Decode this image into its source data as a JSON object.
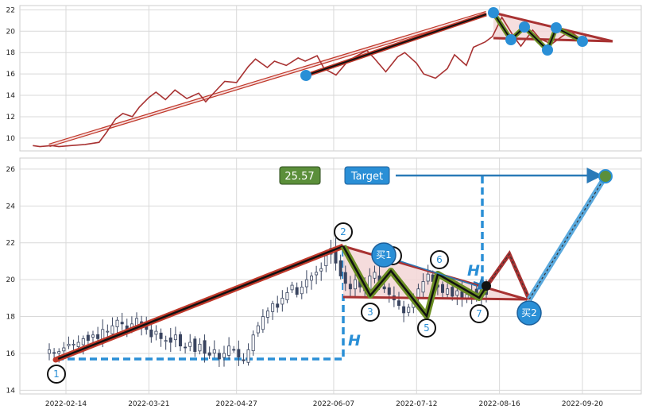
{
  "chart_data": [
    {
      "type": "line",
      "panel": "top",
      "ylim": [
        8.8,
        22.4
      ],
      "yticks": [
        10,
        12,
        14,
        16,
        18,
        20,
        22
      ],
      "grid": true,
      "colors": {
        "line": "#a83232",
        "trend": "#c0392b",
        "pattern": "#2a8fd6",
        "wedge": "#6b8e23"
      },
      "series": [
        {
          "x": [
            "2022-01-31",
            "2022-02-03",
            "2022-02-08",
            "2022-02-11",
            "2022-02-16",
            "2022-02-22",
            "2022-02-28",
            "2022-03-03",
            "2022-03-07",
            "2022-03-10",
            "2022-03-14",
            "2022-03-17",
            "2022-03-21",
            "2022-03-24",
            "2022-03-28",
            "2022-04-01",
            "2022-04-06",
            "2022-04-11",
            "2022-04-14",
            "2022-04-19",
            "2022-04-22",
            "2022-04-27",
            "2022-05-02",
            "2022-05-05",
            "2022-05-10",
            "2022-05-13",
            "2022-05-18",
            "2022-05-23",
            "2022-05-26",
            "2022-05-31",
            "2022-06-03",
            "2022-06-08",
            "2022-06-13",
            "2022-06-16",
            "2022-06-21",
            "2022-06-24",
            "2022-06-29",
            "2022-07-04",
            "2022-07-07",
            "2022-07-12",
            "2022-07-15",
            "2022-07-20",
            "2022-07-25",
            "2022-07-28",
            "2022-08-02",
            "2022-08-05",
            "2022-08-10",
            "2022-08-13",
            "2022-08-17",
            "2022-08-22",
            "2022-08-25",
            "2022-08-30",
            "2022-09-02",
            "2022-09-07",
            "2022-09-12",
            "2022-09-15",
            "2022-09-20",
            "2022-09-22"
          ],
          "values": [
            9.3,
            9.2,
            9.3,
            9.2,
            9.3,
            9.4,
            9.6,
            10.5,
            11.8,
            12.3,
            12.0,
            12.9,
            13.8,
            14.3,
            13.6,
            14.5,
            13.7,
            14.2,
            13.4,
            14.6,
            15.3,
            15.2,
            16.7,
            17.4,
            16.6,
            17.2,
            16.8,
            17.5,
            17.2,
            17.7,
            16.5,
            15.9,
            17.2,
            17.6,
            18.2,
            17.5,
            16.2,
            17.6,
            18.0,
            17.0,
            16.0,
            15.6,
            16.5,
            17.8,
            16.8,
            18.5,
            19.0,
            19.5,
            21.3,
            19.5,
            18.6,
            20.1,
            19.3,
            18.8,
            19.6,
            20.0,
            19.1,
            19.7
          ]
        }
      ]
    },
    {
      "type": "candlestick",
      "panel": "bottom",
      "ylim": [
        13.8,
        26.6
      ],
      "yticks": [
        14,
        16,
        18,
        20,
        22,
        24,
        26
      ],
      "xtick_labels": [
        "2022-02-14",
        "2022-03-21",
        "2022-04-27",
        "2022-06-07",
        "2022-07-12",
        "2022-08-16",
        "2022-09-20"
      ],
      "grid": true,
      "close_series": [
        16.2,
        16.0,
        16.1,
        16.3,
        16.5,
        16.5,
        16.6,
        16.8,
        16.7,
        17.0,
        16.8,
        17.3,
        17.2,
        17.5,
        17.8,
        17.6,
        17.2,
        17.6,
        17.9,
        17.4,
        17.3,
        16.9,
        17.2,
        16.8,
        16.7,
        16.6,
        17.0,
        16.4,
        16.3,
        16.6,
        16.1,
        16.5,
        16.0,
        15.9,
        16.2,
        15.7,
        16.0,
        16.4,
        16.2,
        15.8,
        15.6,
        16.2,
        17.0,
        17.5,
        18.0,
        18.3,
        18.7,
        18.5,
        19.0,
        19.3,
        19.7,
        19.2,
        19.6,
        20.0,
        20.2,
        20.4,
        20.6,
        21.3,
        21.7,
        20.9,
        20.2,
        19.8,
        19.5,
        20.0,
        19.6,
        19.4,
        20.2,
        20.4,
        19.8,
        19.5,
        19.2,
        18.9,
        18.6,
        18.2,
        18.5,
        19.0,
        19.5,
        19.9,
        20.3,
        19.9,
        19.6,
        19.3,
        19.5,
        19.1,
        19.4,
        19.0,
        19.2,
        19.3,
        19.1,
        19.5,
        19.2
      ],
      "price_label": "25.57",
      "target_label": "Target",
      "height_label": "H",
      "wave_points": [
        {
          "label": "1",
          "x": "2022-02-07",
          "y": 15.8
        },
        {
          "label": "2",
          "x": "2022-06-07",
          "y": 21.7
        },
        {
          "label": "3",
          "x": "2022-06-20",
          "y": 19.2
        },
        {
          "label": "4",
          "x": "2022-06-30",
          "y": 20.5
        },
        {
          "label": "5",
          "x": "2022-07-20",
          "y": 18.2
        },
        {
          "label": "6",
          "x": "2022-07-25",
          "y": 20.3
        },
        {
          "label": "7",
          "x": "2022-08-12",
          "y": 19.1
        }
      ],
      "buy_points": [
        {
          "label": "买1",
          "x": "2022-06-27",
          "y": 21.3
        },
        {
          "label": "买2",
          "x": "2022-09-01",
          "y": 18.9
        }
      ],
      "target_value": 25.57
    }
  ]
}
